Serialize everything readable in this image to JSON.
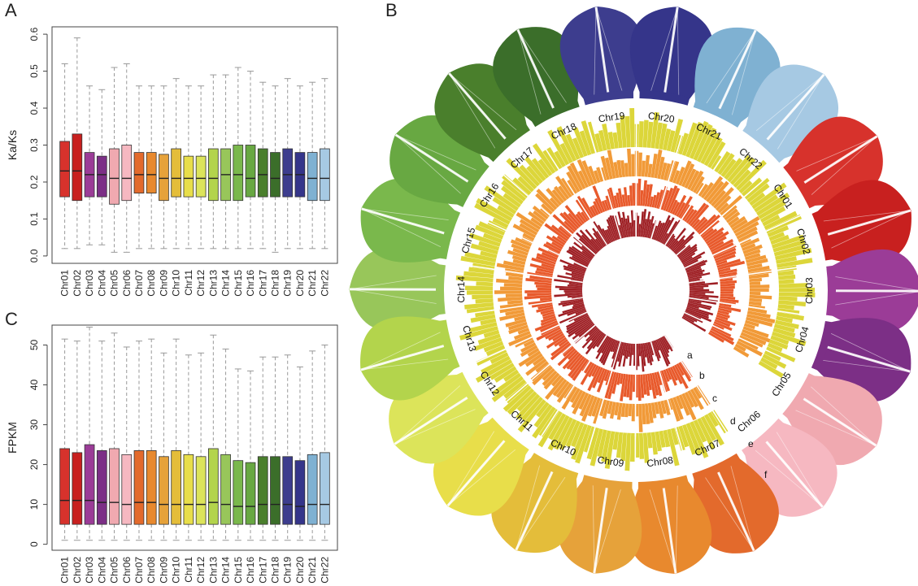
{
  "panel_labels": {
    "a": "A",
    "b": "B",
    "c": "C"
  },
  "chromosomes": [
    "Chr01",
    "Chr02",
    "Chr03",
    "Chr04",
    "Chr05",
    "Chr06",
    "Chr07",
    "Chr08",
    "Chr09",
    "Chr10",
    "Chr11",
    "Chr12",
    "Chr13",
    "Chr14",
    "Chr15",
    "Chr16",
    "Chr17",
    "Chr18",
    "Chr19",
    "Chr20",
    "Chr21",
    "Chr22"
  ],
  "colors": [
    "#d7322c",
    "#c8201f",
    "#9b3c97",
    "#7c2f86",
    "#f0a9b0",
    "#f6b8c1",
    "#e36a2c",
    "#e8892e",
    "#e6a23a",
    "#e4bd3a",
    "#e8de4a",
    "#dce45a",
    "#b3d44c",
    "#98c65a",
    "#7ab84c",
    "#68a842",
    "#4a7f2c",
    "#3b6e2a",
    "#3d3d8e",
    "#35358a",
    "#7fb1d2",
    "#a6c9e3"
  ],
  "chart_data": [
    {
      "id": "A",
      "type": "boxplot",
      "ylabel": "Ka/Ks",
      "ylim": [
        -0.02,
        0.62
      ],
      "yticks": [
        "0.0",
        "0.1",
        "0.2",
        "0.3",
        "0.4",
        "0.5",
        "0.6"
      ],
      "ytick_values": [
        0.0,
        0.1,
        0.2,
        0.3,
        0.4,
        0.5,
        0.6
      ],
      "series": [
        {
          "name": "Chr01",
          "min": 0.02,
          "q1": 0.16,
          "median": 0.23,
          "q3": 0.31,
          "max": 0.52
        },
        {
          "name": "Chr02",
          "min": 0.02,
          "q1": 0.15,
          "median": 0.23,
          "q3": 0.33,
          "max": 0.59
        },
        {
          "name": "Chr03",
          "min": 0.03,
          "q1": 0.16,
          "median": 0.22,
          "q3": 0.28,
          "max": 0.46
        },
        {
          "name": "Chr04",
          "min": 0.03,
          "q1": 0.16,
          "median": 0.22,
          "q3": 0.27,
          "max": 0.45
        },
        {
          "name": "Chr05",
          "min": 0.01,
          "q1": 0.14,
          "median": 0.21,
          "q3": 0.29,
          "max": 0.51
        },
        {
          "name": "Chr06",
          "min": 0.01,
          "q1": 0.15,
          "median": 0.21,
          "q3": 0.3,
          "max": 0.52
        },
        {
          "name": "Chr07",
          "min": 0.02,
          "q1": 0.17,
          "median": 0.22,
          "q3": 0.28,
          "max": 0.46
        },
        {
          "name": "Chr08",
          "min": 0.02,
          "q1": 0.17,
          "median": 0.22,
          "q3": 0.28,
          "max": 0.46
        },
        {
          "name": "Chr09",
          "min": 0.02,
          "q1": 0.15,
          "median": 0.21,
          "q3": 0.275,
          "max": 0.46
        },
        {
          "name": "Chr10",
          "min": 0.02,
          "q1": 0.16,
          "median": 0.21,
          "q3": 0.29,
          "max": 0.48
        },
        {
          "name": "Chr11",
          "min": 0.02,
          "q1": 0.16,
          "median": 0.21,
          "q3": 0.27,
          "max": 0.46
        },
        {
          "name": "Chr12",
          "min": 0.02,
          "q1": 0.16,
          "median": 0.21,
          "q3": 0.27,
          "max": 0.46
        },
        {
          "name": "Chr13",
          "min": 0.02,
          "q1": 0.15,
          "median": 0.21,
          "q3": 0.29,
          "max": 0.49
        },
        {
          "name": "Chr14",
          "min": 0.02,
          "q1": 0.15,
          "median": 0.22,
          "q3": 0.29,
          "max": 0.49
        },
        {
          "name": "Chr15",
          "min": 0.02,
          "q1": 0.15,
          "median": 0.22,
          "q3": 0.3,
          "max": 0.51
        },
        {
          "name": "Chr16",
          "min": 0.02,
          "q1": 0.16,
          "median": 0.21,
          "q3": 0.3,
          "max": 0.5
        },
        {
          "name": "Chr17",
          "min": 0.02,
          "q1": 0.16,
          "median": 0.22,
          "q3": 0.29,
          "max": 0.47
        },
        {
          "name": "Chr18",
          "min": 0.01,
          "q1": 0.16,
          "median": 0.21,
          "q3": 0.28,
          "max": 0.46
        },
        {
          "name": "Chr19",
          "min": 0.02,
          "q1": 0.16,
          "median": 0.22,
          "q3": 0.29,
          "max": 0.48
        },
        {
          "name": "Chr20",
          "min": 0.02,
          "q1": 0.16,
          "median": 0.22,
          "q3": 0.28,
          "max": 0.46
        },
        {
          "name": "Chr21",
          "min": 0.02,
          "q1": 0.15,
          "median": 0.21,
          "q3": 0.28,
          "max": 0.47
        },
        {
          "name": "Chr22",
          "min": 0.02,
          "q1": 0.15,
          "median": 0.21,
          "q3": 0.29,
          "max": 0.48
        }
      ]
    },
    {
      "id": "C",
      "type": "boxplot",
      "ylabel": "FPKM",
      "ylim": [
        -1.5,
        55
      ],
      "yticks": [
        "0",
        "10",
        "20",
        "30",
        "40",
        "50"
      ],
      "ytick_values": [
        0,
        10,
        20,
        30,
        40,
        50
      ],
      "series": [
        {
          "name": "Chr01",
          "min": 1,
          "q1": 5,
          "median": 11,
          "q3": 24,
          "max": 51.5
        },
        {
          "name": "Chr02",
          "min": 1,
          "q1": 5,
          "median": 11,
          "q3": 23,
          "max": 51
        },
        {
          "name": "Chr03",
          "min": 1,
          "q1": 5,
          "median": 11,
          "q3": 25,
          "max": 54.5
        },
        {
          "name": "Chr04",
          "min": 1,
          "q1": 5,
          "median": 10.5,
          "q3": 23.5,
          "max": 51
        },
        {
          "name": "Chr05",
          "min": 1,
          "q1": 5,
          "median": 10.5,
          "q3": 24,
          "max": 53
        },
        {
          "name": "Chr06",
          "min": 1,
          "q1": 5,
          "median": 10,
          "q3": 22.5,
          "max": 49.5
        },
        {
          "name": "Chr07",
          "min": 1,
          "q1": 5,
          "median": 10.5,
          "q3": 23.5,
          "max": 51
        },
        {
          "name": "Chr08",
          "min": 1,
          "q1": 5,
          "median": 10.5,
          "q3": 23.5,
          "max": 51.5
        },
        {
          "name": "Chr09",
          "min": 1,
          "q1": 5,
          "median": 10,
          "q3": 22,
          "max": 48
        },
        {
          "name": "Chr10",
          "min": 1,
          "q1": 5,
          "median": 10,
          "q3": 23.5,
          "max": 51.5
        },
        {
          "name": "Chr11",
          "min": 1,
          "q1": 5,
          "median": 10,
          "q3": 22.5,
          "max": 47.5
        },
        {
          "name": "Chr12",
          "min": 1,
          "q1": 5,
          "median": 10,
          "q3": 22,
          "max": 48
        },
        {
          "name": "Chr13",
          "min": 1,
          "q1": 5,
          "median": 10.5,
          "q3": 24,
          "max": 52.5
        },
        {
          "name": "Chr14",
          "min": 1,
          "q1": 5,
          "median": 10,
          "q3": 22.5,
          "max": 49
        },
        {
          "name": "Chr15",
          "min": 1,
          "q1": 5,
          "median": 9.5,
          "q3": 21,
          "max": 44
        },
        {
          "name": "Chr16",
          "min": 1,
          "q1": 5,
          "median": 9.5,
          "q3": 20.5,
          "max": 43.5
        },
        {
          "name": "Chr17",
          "min": 1,
          "q1": 5,
          "median": 10,
          "q3": 22,
          "max": 47
        },
        {
          "name": "Chr18",
          "min": 1,
          "q1": 5,
          "median": 10,
          "q3": 22,
          "max": 47
        },
        {
          "name": "Chr19",
          "min": 1,
          "q1": 5,
          "median": 10,
          "q3": 22,
          "max": 47.5
        },
        {
          "name": "Chr20",
          "min": 1,
          "q1": 5,
          "median": 9.5,
          "q3": 21,
          "max": 44.5
        },
        {
          "name": "Chr21",
          "min": 1,
          "q1": 5,
          "median": 10,
          "q3": 22.5,
          "max": 48.5
        },
        {
          "name": "Chr22",
          "min": 1,
          "q1": 5,
          "median": 10,
          "q3": 23,
          "max": 50
        }
      ]
    },
    {
      "id": "B",
      "type": "circos",
      "ring_labels": [
        "a",
        "b",
        "c",
        "d",
        "e",
        "f"
      ],
      "chromosome_order_clockwise_from_top": [
        "Chr14",
        "Chr15",
        "Chr16",
        "Chr17",
        "Chr18",
        "Chr19",
        "Chr20",
        "Chr21",
        "Chr22",
        "Chr01",
        "Chr02",
        "Chr03",
        "Chr04",
        "Chr05",
        "Chr06",
        "Chr07",
        "Chr08",
        "Chr09",
        "Chr10",
        "Chr11",
        "Chr12",
        "Chr13"
      ],
      "ring_colors": {
        "a": "#9e1f24",
        "b": "#e85a2c",
        "c": "#f19a38",
        "d": "#dcd63a"
      }
    }
  ]
}
